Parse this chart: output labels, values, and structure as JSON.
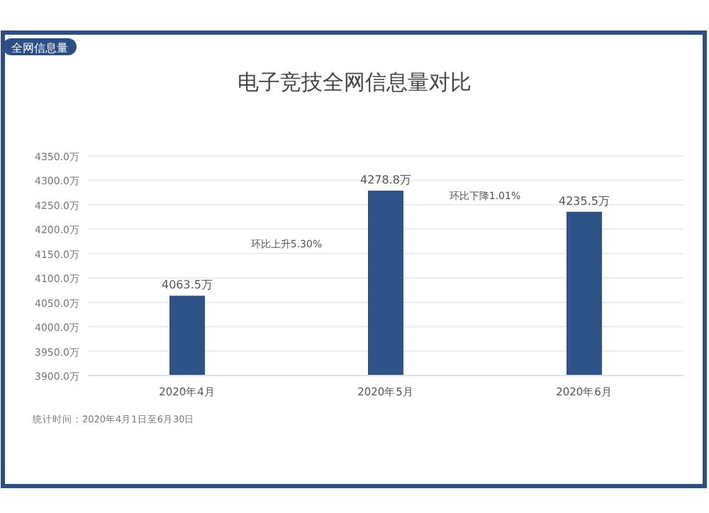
{
  "chart_data": {
    "type": "bar",
    "title": "电子竞技全网信息量对比",
    "categories": [
      "2020年4月",
      "2020年5月",
      "2020年6月"
    ],
    "values": [
      4063.5,
      4278.8,
      4235.5
    ],
    "value_labels": [
      "4063.5万",
      "4278.8万",
      "4235.5万"
    ],
    "color": "#2e5389",
    "ylim": [
      3900,
      4350
    ],
    "yticks": [
      {
        "value": 3900,
        "label": "3900.0万"
      },
      {
        "value": 3950,
        "label": "3950.0万"
      },
      {
        "value": 4000,
        "label": "4000.0万"
      },
      {
        "value": 4050,
        "label": "4050.0万"
      },
      {
        "value": 4100,
        "label": "4100.0万"
      },
      {
        "value": 4150,
        "label": "4150.0万"
      },
      {
        "value": 4200,
        "label": "4200.0万"
      },
      {
        "value": 4250,
        "label": "4250.0万"
      },
      {
        "value": 4300,
        "label": "4300.0万"
      },
      {
        "value": 4350,
        "label": "4350.0万"
      }
    ],
    "grid": "y",
    "annotations": [
      "环比上升5.30%",
      "环比下降1.01%",
      "全网信息量",
      "统计时间：2020年4月1日至6月30日"
    ]
  }
}
